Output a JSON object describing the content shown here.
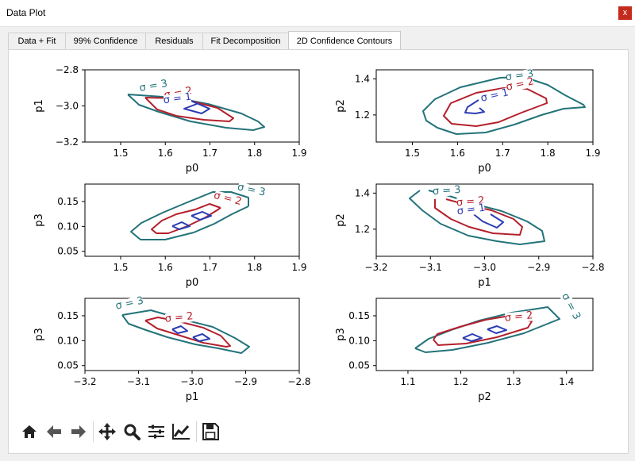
{
  "window": {
    "title": "Data Plot",
    "close_label": "x"
  },
  "tabs": [
    {
      "label": "Data + Fit"
    },
    {
      "label": "99% Confidence"
    },
    {
      "label": "Residuals"
    },
    {
      "label": "Fit Decomposition"
    },
    {
      "label": "2D Confidence Contours",
      "active": true
    }
  ],
  "colors": {
    "sigma1": "#2b3cb4",
    "sigma2": "#b4202c",
    "sigma3": "#23737a"
  },
  "contour_labels": {
    "s1": "σ = 1",
    "s2": "σ = 2",
    "s3": "σ = 3"
  },
  "toolbar": [
    "home-icon",
    "back-icon",
    "forward-icon",
    "pan-icon",
    "zoom-icon",
    "configure-subplots-icon",
    "edit-axis-icon",
    "save-icon"
  ],
  "chart_data": [
    {
      "type": "contour",
      "xlabel": "p0",
      "ylabel": "p1",
      "xlim": [
        1.42,
        1.9
      ],
      "ylim": [
        -3.2,
        -2.8
      ],
      "xticks": [
        "1.5",
        "1.6",
        "1.7",
        "1.8",
        "1.9"
      ],
      "xtick_vals": [
        1.5,
        1.6,
        1.7,
        1.8,
        1.9
      ],
      "yticks": [
        "−2.8",
        "−3.0",
        "−3.2"
      ],
      "ytick_vals": [
        -2.8,
        -3.0,
        -3.2
      ],
      "levels": [
        "σ = 1",
        "σ = 2",
        "σ = 3"
      ]
    },
    {
      "type": "contour",
      "xlabel": "p0",
      "ylabel": "p2",
      "xlim": [
        1.42,
        1.9
      ],
      "ylim": [
        1.05,
        1.45
      ],
      "xticks": [
        "1.5",
        "1.6",
        "1.7",
        "1.8",
        "1.9"
      ],
      "xtick_vals": [
        1.5,
        1.6,
        1.7,
        1.8,
        1.9
      ],
      "yticks": [
        "1.4",
        "1.2"
      ],
      "ytick_vals": [
        1.4,
        1.2
      ],
      "levels": [
        "σ = 1",
        "σ = 2",
        "σ = 3"
      ]
    },
    {
      "type": "contour",
      "xlabel": "p0",
      "ylabel": "p3",
      "xlim": [
        1.42,
        1.9
      ],
      "ylim": [
        0.04,
        0.185
      ],
      "xticks": [
        "1.5",
        "1.6",
        "1.7",
        "1.8",
        "1.9"
      ],
      "xtick_vals": [
        1.5,
        1.6,
        1.7,
        1.8,
        1.9
      ],
      "yticks": [
        "0.15",
        "0.10",
        "0.05"
      ],
      "ytick_vals": [
        0.15,
        0.1,
        0.05
      ],
      "levels": [
        "σ = 2",
        "σ = 3"
      ]
    },
    {
      "type": "contour",
      "xlabel": "p1",
      "ylabel": "p2",
      "xlim": [
        -3.2,
        -2.8
      ],
      "ylim": [
        1.05,
        1.45
      ],
      "xticks": [
        "−3.2",
        "−3.1",
        "−3.0",
        "−2.9",
        "−2.8"
      ],
      "xtick_vals": [
        -3.2,
        -3.1,
        -3.0,
        -2.9,
        -2.8
      ],
      "yticks": [
        "1.4",
        "1.2"
      ],
      "ytick_vals": [
        1.4,
        1.2
      ],
      "levels": [
        "σ = 1",
        "σ = 2",
        "σ = 3"
      ]
    },
    {
      "type": "contour",
      "xlabel": "p1",
      "ylabel": "p3",
      "xlim": [
        -3.2,
        -2.8
      ],
      "ylim": [
        0.04,
        0.185
      ],
      "xticks": [
        "−3.2",
        "−3.1",
        "−3.0",
        "−2.9",
        "−2.8"
      ],
      "xtick_vals": [
        -3.2,
        -3.1,
        -3.0,
        -2.9,
        -2.8
      ],
      "yticks": [
        "0.15",
        "0.10",
        "0.05"
      ],
      "ytick_vals": [
        0.15,
        0.1,
        0.05
      ],
      "levels": [
        "σ = 2",
        "σ = 3"
      ]
    },
    {
      "type": "contour",
      "xlabel": "p2",
      "ylabel": "p3",
      "xlim": [
        1.04,
        1.45
      ],
      "ylim": [
        0.04,
        0.185
      ],
      "xticks": [
        "1.1",
        "1.2",
        "1.3",
        "1.4"
      ],
      "xtick_vals": [
        1.1,
        1.2,
        1.3,
        1.4
      ],
      "yticks": [
        "0.15",
        "0.10",
        "0.05"
      ],
      "ytick_vals": [
        0.15,
        0.1,
        0.05
      ],
      "levels": [
        "σ = 2",
        "σ = 3"
      ]
    }
  ]
}
